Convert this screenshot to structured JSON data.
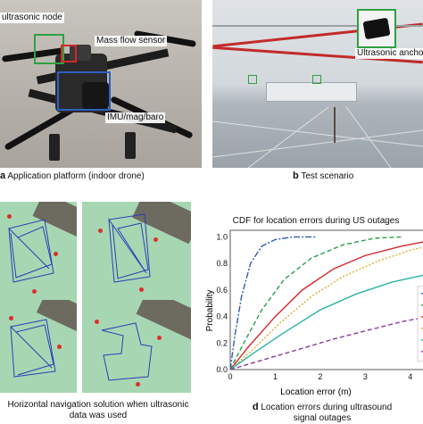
{
  "panel_a": {
    "callouts": {
      "node": "ultrasonic node",
      "flow": "Mass flow sensor",
      "imu": "IMU/mag/baro"
    },
    "caption_letter": "a",
    "caption_text": "Application platform (indoor drone)"
  },
  "panel_b": {
    "anchor_label": "Ultrasonic anchor",
    "caption_letter": "b",
    "caption_text": "Test scenario"
  },
  "panel_c": {
    "caption_line1": "Horizontal navigation solution when ultrasonic",
    "caption_line2": "data was used"
  },
  "panel_d": {
    "caption_letter": "d",
    "caption_line1": "Location errors during ultrasound",
    "caption_line2": "signal outages"
  },
  "colors": {
    "callout_green": "#2ea043",
    "callout_red": "#d62728",
    "callout_blue": "#2f5ec4"
  },
  "chart_data": {
    "type": "line",
    "title": "CDF for location errors during US outages",
    "xlabel": "Location error (m)",
    "ylabel": "Probability",
    "xlim": [
      0,
      4.4
    ],
    "ylim": [
      0,
      1.05
    ],
    "xticks": [
      "0",
      "1",
      "2",
      "3",
      "4"
    ],
    "yticks": [
      "0.0",
      "0.2",
      "0.4",
      "0.6",
      "0.8",
      "1.0"
    ],
    "grid": true,
    "legend_position": "right",
    "series": [
      {
        "color": "#2c5fb8",
        "dash": "7,2,2,2",
        "x": [
          0,
          0.1,
          0.25,
          0.45,
          0.7,
          1.0,
          1.4,
          1.9
        ],
        "y": [
          0,
          0.25,
          0.55,
          0.8,
          0.93,
          0.98,
          1.0,
          1.0
        ]
      },
      {
        "color": "#2a9d4b",
        "dash": "5,3",
        "x": [
          0,
          0.3,
          0.7,
          1.2,
          1.8,
          2.5,
          3.2,
          3.8
        ],
        "y": [
          0,
          0.2,
          0.45,
          0.68,
          0.84,
          0.94,
          0.99,
          1.0
        ]
      },
      {
        "color": "#d62728",
        "dash": "",
        "x": [
          0,
          0.4,
          1.0,
          1.6,
          2.3,
          3.0,
          3.8,
          4.4
        ],
        "y": [
          0,
          0.17,
          0.4,
          0.6,
          0.76,
          0.86,
          0.93,
          0.97
        ]
      },
      {
        "color": "#d9b02a",
        "dash": "2,2",
        "x": [
          0,
          0.5,
          1.1,
          1.8,
          2.5,
          3.3,
          4.0,
          4.4
        ],
        "y": [
          0,
          0.15,
          0.35,
          0.55,
          0.7,
          0.82,
          0.9,
          0.93
        ]
      },
      {
        "color": "#2bb3a7",
        "dash": "",
        "x": [
          0,
          0.5,
          1.2,
          2.0,
          2.8,
          3.6,
          4.4
        ],
        "y": [
          0,
          0.12,
          0.28,
          0.45,
          0.57,
          0.66,
          0.72
        ]
      },
      {
        "color": "#8a3a9e",
        "dash": "5,3",
        "x": [
          0,
          0.7,
          1.5,
          2.3,
          3.1,
          3.8,
          4.4
        ],
        "y": [
          0,
          0.07,
          0.15,
          0.23,
          0.3,
          0.36,
          0.4
        ]
      }
    ]
  }
}
